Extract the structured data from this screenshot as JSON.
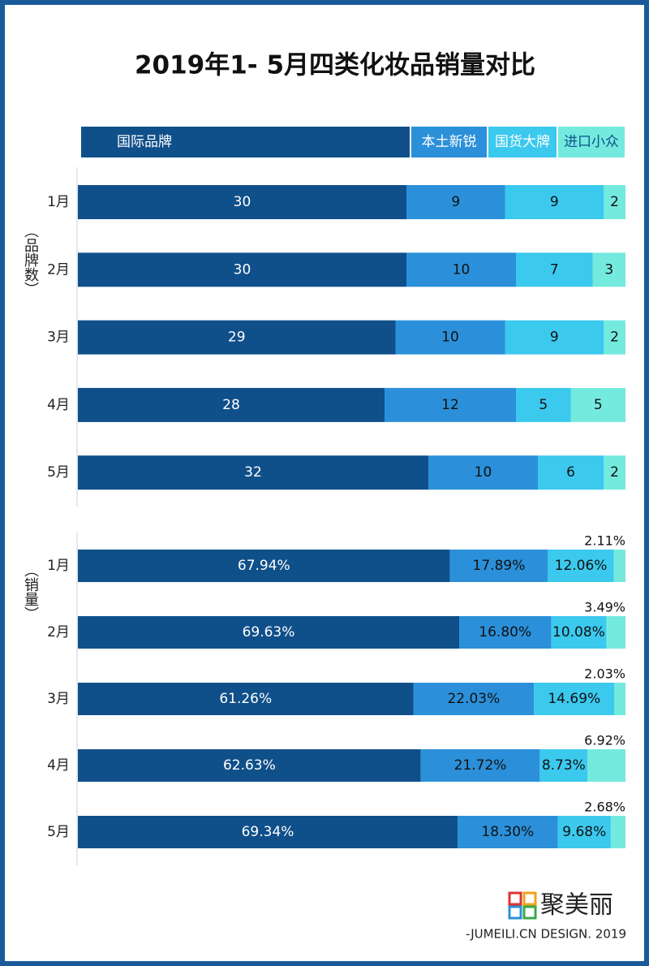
{
  "title": "2019年1- 5月四类化妆品销量对比",
  "logo": "聚美丽",
  "credit": "-JUMEILI.CN DESIGN. 2019",
  "chart_data": [
    {
      "type": "bar",
      "orientation": "horizontal",
      "stacked": true,
      "ylabel": "（品牌数）",
      "categories": [
        "1月",
        "2月",
        "3月",
        "4月",
        "5月"
      ],
      "xlim": [
        0,
        50
      ],
      "series": [
        {
          "name": "国际品牌",
          "color": "#10508a",
          "values": [
            30,
            30,
            29,
            28,
            32
          ]
        },
        {
          "name": "本土新锐",
          "color": "#2b90d9",
          "values": [
            9,
            10,
            10,
            12,
            10
          ]
        },
        {
          "name": "国货大牌",
          "color": "#3bc9ee",
          "values": [
            9,
            7,
            9,
            5,
            6
          ]
        },
        {
          "name": "进口小众",
          "color": "#74eadf",
          "values": [
            2,
            3,
            2,
            5,
            2
          ]
        }
      ]
    },
    {
      "type": "bar",
      "orientation": "horizontal",
      "stacked": true,
      "ylabel": "（销量）",
      "categories": [
        "1月",
        "2月",
        "3月",
        "4月",
        "5月"
      ],
      "xlim": [
        0,
        100
      ],
      "series": [
        {
          "name": "国际品牌",
          "color": "#10508a",
          "values": [
            67.94,
            69.63,
            61.26,
            62.63,
            69.34
          ],
          "value_labels": [
            "67.94%",
            "69.63%",
            "61.26%",
            "62.63%",
            "69.34%"
          ]
        },
        {
          "name": "本土新锐",
          "color": "#2b90d9",
          "values": [
            17.89,
            16.8,
            22.03,
            21.72,
            18.3
          ],
          "value_labels": [
            "17.89%",
            "16.80%",
            "22.03%",
            "21.72%",
            "18.30%"
          ]
        },
        {
          "name": "国货大牌",
          "color": "#3bc9ee",
          "values": [
            12.06,
            10.08,
            14.69,
            8.73,
            9.68
          ],
          "value_labels": [
            "12.06%",
            "10.08%",
            "14.69%",
            "8.73%",
            "9.68%"
          ]
        },
        {
          "name": "进口小众",
          "color": "#74eadf",
          "values": [
            2.11,
            3.49,
            2.03,
            6.92,
            2.68
          ],
          "value_labels": [
            "2.11%",
            "3.49%",
            "2.03%",
            "6.92%",
            "2.68%"
          ],
          "label_position": "above"
        }
      ]
    }
  ]
}
